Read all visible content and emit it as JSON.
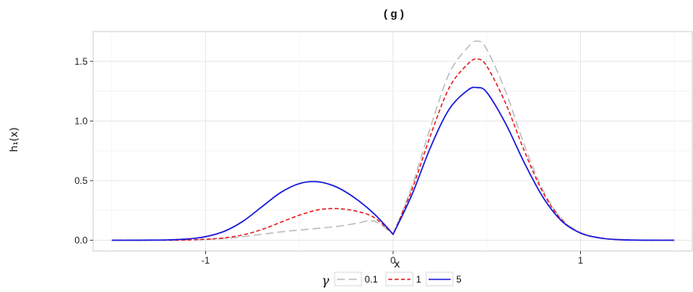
{
  "chart_data": {
    "type": "line",
    "title": "( g )",
    "xlabel": "x",
    "ylabel": "h₁(x)",
    "xlim": [
      -1.6,
      1.6
    ],
    "ylim": [
      -0.09,
      1.75
    ],
    "xticks": [
      -1,
      0,
      1
    ],
    "xtick_labels": [
      "-1",
      "0",
      "1"
    ],
    "yticks": [
      0.0,
      0.5,
      1.0,
      1.5
    ],
    "ytick_labels": [
      "0.0",
      "0.5",
      "1.0",
      "1.5"
    ],
    "grid": true,
    "legend": {
      "title": "γ",
      "placement": "bottom"
    },
    "x": [
      -1.5,
      -1.4,
      -1.3,
      -1.2,
      -1.1,
      -1.0,
      -0.9,
      -0.8,
      -0.7,
      -0.6,
      -0.5,
      -0.4,
      -0.3,
      -0.2,
      -0.1,
      0.0,
      0.1,
      0.2,
      0.3,
      0.4,
      0.45,
      0.5,
      0.6,
      0.7,
      0.8,
      0.9,
      1.0,
      1.1,
      1.2,
      1.3,
      1.4,
      1.5
    ],
    "series": [
      {
        "name": "0.1",
        "color": "#bbbbbb",
        "dash": "longdash",
        "values": [
          0.0,
          0.0,
          0.0,
          0.0,
          0.002,
          0.006,
          0.014,
          0.03,
          0.05,
          0.07,
          0.085,
          0.1,
          0.115,
          0.14,
          0.16,
          0.05,
          0.45,
          0.95,
          1.4,
          1.62,
          1.67,
          1.6,
          1.25,
          0.8,
          0.42,
          0.18,
          0.065,
          0.02,
          0.005,
          0.001,
          0.0,
          0.0
        ]
      },
      {
        "name": "1",
        "color": "#e8141b",
        "dash": "dashed",
        "values": [
          0.0,
          0.0,
          0.0,
          0.0,
          0.002,
          0.008,
          0.02,
          0.045,
          0.09,
          0.15,
          0.21,
          0.255,
          0.265,
          0.245,
          0.19,
          0.05,
          0.42,
          0.88,
          1.28,
          1.48,
          1.52,
          1.46,
          1.15,
          0.75,
          0.4,
          0.17,
          0.06,
          0.02,
          0.005,
          0.001,
          0.0,
          0.0
        ]
      },
      {
        "name": "5",
        "color": "#1a1adb",
        "dash": "solid",
        "values": [
          0.0,
          0.0,
          0.001,
          0.003,
          0.01,
          0.03,
          0.075,
          0.16,
          0.28,
          0.4,
          0.475,
          0.49,
          0.445,
          0.35,
          0.22,
          0.05,
          0.38,
          0.78,
          1.1,
          1.26,
          1.28,
          1.24,
          0.98,
          0.65,
          0.36,
          0.16,
          0.06,
          0.02,
          0.005,
          0.001,
          0.0,
          0.0
        ]
      }
    ]
  }
}
